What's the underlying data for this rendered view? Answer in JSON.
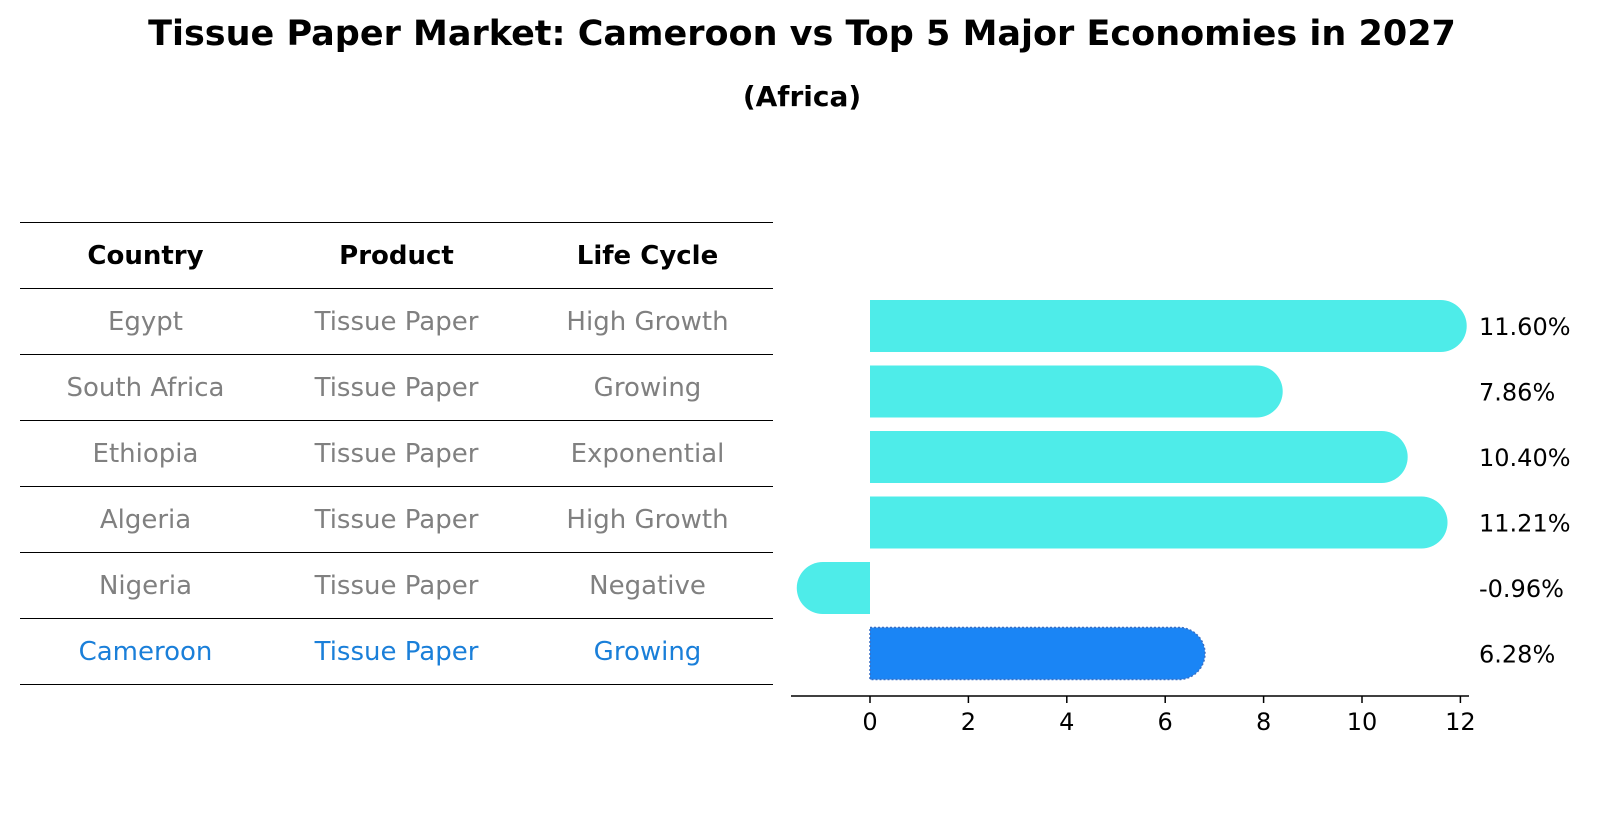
{
  "header": {
    "title": "Tissue Paper Market: Cameroon vs Top 5 Major Economies in 2027",
    "subtitle": "(Africa)"
  },
  "table": {
    "columns": [
      "Country",
      "Product",
      "Life Cycle"
    ],
    "rows": [
      {
        "country": "Egypt",
        "product": "Tissue Paper",
        "life_cycle": "High Growth"
      },
      {
        "country": "South Africa",
        "product": "Tissue Paper",
        "life_cycle": "Growing"
      },
      {
        "country": "Ethiopia",
        "product": "Tissue Paper",
        "life_cycle": "Exponential"
      },
      {
        "country": "Algeria",
        "product": "Tissue Paper",
        "life_cycle": "High Growth"
      },
      {
        "country": "Nigeria",
        "product": "Tissue Paper",
        "life_cycle": "Negative"
      },
      {
        "country": "Cameroon",
        "product": "Tissue Paper",
        "life_cycle": "Growing"
      }
    ],
    "highlight_row": "Cameroon"
  },
  "chart_data": {
    "type": "bar",
    "orientation": "horizontal",
    "categories": [
      "Egypt",
      "South Africa",
      "Ethiopia",
      "Algeria",
      "Nigeria",
      "Cameroon"
    ],
    "values": [
      11.6,
      7.86,
      10.4,
      11.21,
      -0.96,
      6.28
    ],
    "value_labels": [
      "11.60%",
      "7.86%",
      "10.40%",
      "11.21%",
      "-0.96%",
      "6.28%"
    ],
    "xlim": [
      -1.6,
      12.2
    ],
    "xticks": [
      0,
      2,
      4,
      6,
      8,
      10,
      12
    ],
    "highlight": "Cameroon",
    "colors": {
      "default": "#4eece9",
      "highlight": "#1a85f5",
      "text": "#000000"
    }
  }
}
